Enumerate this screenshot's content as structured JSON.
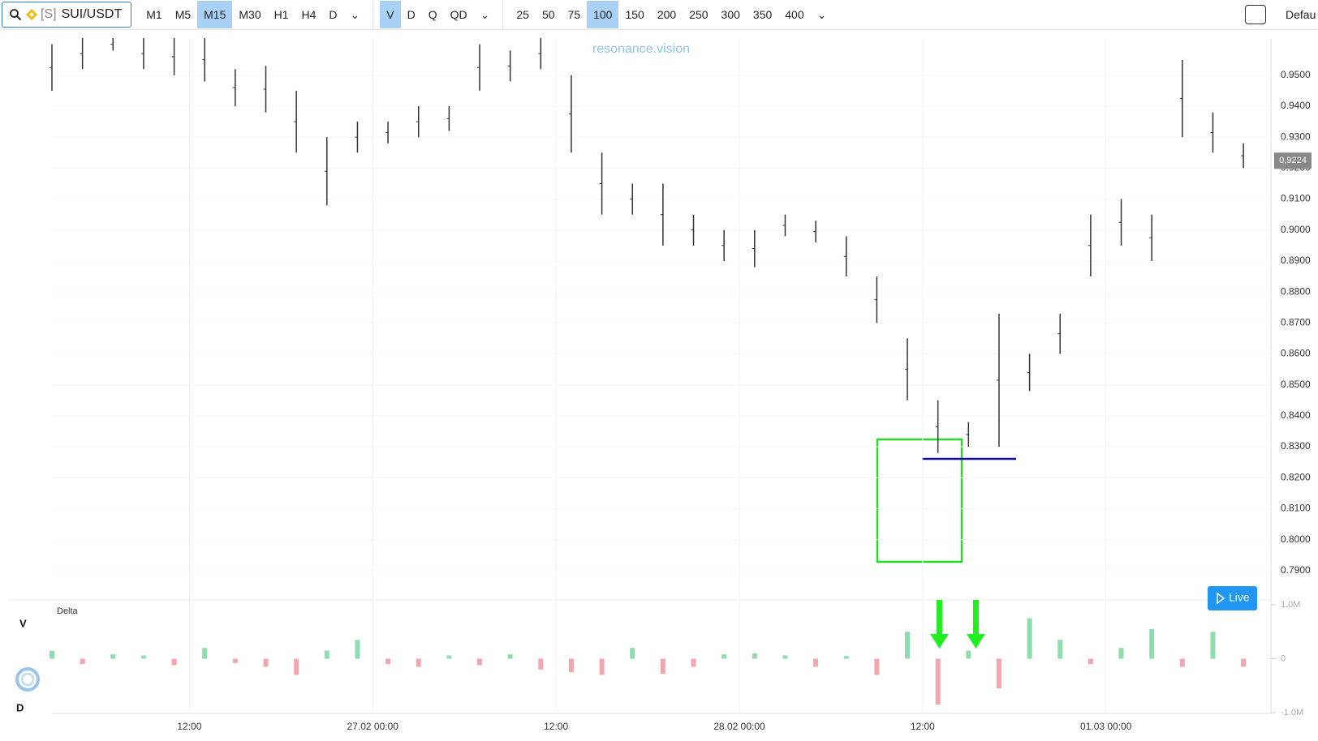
{
  "toolbar": {
    "symbol_prefix": "[S]",
    "symbol": "SUI/USDT",
    "timeframes": [
      "M1",
      "M5",
      "M15",
      "M30",
      "H1",
      "H4",
      "D"
    ],
    "active_timeframe": "M15",
    "modes": [
      "V",
      "D",
      "Q",
      "QD"
    ],
    "active_mode": "V",
    "sizes": [
      "25",
      "50",
      "75",
      "100",
      "150",
      "200",
      "250",
      "300",
      "350",
      "400"
    ],
    "active_size": "100",
    "template": "Defau"
  },
  "watermark": "resonance.vision",
  "live_button": "Live",
  "side_labels": [
    "V",
    "D"
  ],
  "chart_data": [
    {
      "type": "range",
      "x": [
        0,
        2,
        4,
        6,
        8,
        10,
        12,
        14,
        16,
        18,
        20,
        22,
        24,
        26,
        28,
        30,
        32,
        34,
        36,
        38,
        40,
        42,
        44,
        46,
        48,
        50,
        52,
        54,
        56,
        58,
        60,
        62,
        64,
        66,
        68,
        70,
        72,
        74,
        76,
        78
      ],
      "high": [
        0.96,
        0.962,
        0.962,
        0.962,
        0.962,
        0.962,
        0.952,
        0.953,
        0.945,
        0.93,
        0.935,
        0.935,
        0.94,
        0.94,
        0.96,
        0.958,
        0.962,
        0.95,
        0.925,
        0.915,
        0.915,
        0.905,
        0.9,
        0.9,
        0.905,
        0.903,
        0.898,
        0.885,
        0.865,
        0.845,
        0.838,
        0.873,
        0.86,
        0.873,
        0.905,
        0.91,
        0.905,
        0.955,
        0.938,
        0.928
      ],
      "low": [
        0.945,
        0.952,
        0.958,
        0.952,
        0.95,
        0.948,
        0.94,
        0.938,
        0.925,
        0.908,
        0.925,
        0.928,
        0.93,
        0.932,
        0.945,
        0.948,
        0.952,
        0.925,
        0.905,
        0.905,
        0.895,
        0.895,
        0.89,
        0.888,
        0.898,
        0.896,
        0.885,
        0.87,
        0.845,
        0.828,
        0.83,
        0.83,
        0.848,
        0.86,
        0.885,
        0.895,
        0.89,
        0.93,
        0.925,
        0.92
      ],
      "color": "#333333",
      "xlim": [
        0,
        79.8
      ],
      "xticks": [
        {
          "value": 9,
          "label": "12:00"
        },
        {
          "value": 21,
          "label": "27.02 00:00"
        },
        {
          "value": 33,
          "label": "12:00"
        },
        {
          "value": 45,
          "label": "28.02 00:00"
        },
        {
          "value": 57,
          "label": "12:00"
        },
        {
          "value": 69,
          "label": "01.03 00:00"
        }
      ],
      "ylim": [
        0.78,
        0.962
      ],
      "yticks": [
        {
          "value": 0.79,
          "label": "0.7900"
        },
        {
          "value": 0.8,
          "label": "0.8000"
        },
        {
          "value": 0.81,
          "label": "0.8100"
        },
        {
          "value": 0.82,
          "label": "0.8200"
        },
        {
          "value": 0.83,
          "label": "0.8300"
        },
        {
          "value": 0.84,
          "label": "0.8400"
        },
        {
          "value": 0.85,
          "label": "0.8500"
        },
        {
          "value": 0.86,
          "label": "0.8600"
        },
        {
          "value": 0.87,
          "label": "0.8700"
        },
        {
          "value": 0.88,
          "label": "0.8800"
        },
        {
          "value": 0.89,
          "label": "0.8900"
        },
        {
          "value": 0.9,
          "label": "0.9000"
        },
        {
          "value": 0.91,
          "label": "0.9100"
        },
        {
          "value": 0.92,
          "label": "0.9200"
        },
        {
          "value": 0.93,
          "label": "0.9300"
        },
        {
          "value": 0.94,
          "label": "0.9400"
        },
        {
          "value": 0.95,
          "label": "0.9500"
        }
      ],
      "last_price": {
        "value": 0.9224,
        "label": "0,9224"
      },
      "grid": true
    },
    {
      "type": "bar",
      "title": "Delta",
      "x": [
        0,
        2,
        4,
        6,
        8,
        10,
        12,
        14,
        16,
        18,
        20,
        22,
        24,
        26,
        28,
        30,
        32,
        34,
        36,
        38,
        40,
        42,
        44,
        46,
        48,
        50,
        52,
        54,
        56,
        58,
        60,
        62,
        64,
        66,
        68,
        70,
        72,
        74,
        76,
        78
      ],
      "values": [
        150000,
        -100000,
        80000,
        60000,
        -120000,
        200000,
        -80000,
        -150000,
        -300000,
        150000,
        350000,
        -100000,
        -150000,
        60000,
        -120000,
        80000,
        -200000,
        -250000,
        -300000,
        200000,
        -280000,
        -150000,
        80000,
        100000,
        60000,
        -150000,
        50000,
        -300000,
        500000,
        -850000,
        150000,
        -550000,
        750000,
        350000,
        -100000,
        200000,
        550000,
        -150000,
        500000,
        -150000
      ],
      "positive_color": "#8fdcb0",
      "negative_color": "#f4a6ae",
      "xlim": [
        0,
        79.8
      ],
      "ylim": [
        -1000000,
        1000000
      ],
      "yticks": [
        {
          "value": 1000000,
          "label": "1.0M"
        },
        0,
        {
          "value": -1000000,
          "label": "-1.0M"
        }
      ]
    }
  ]
}
